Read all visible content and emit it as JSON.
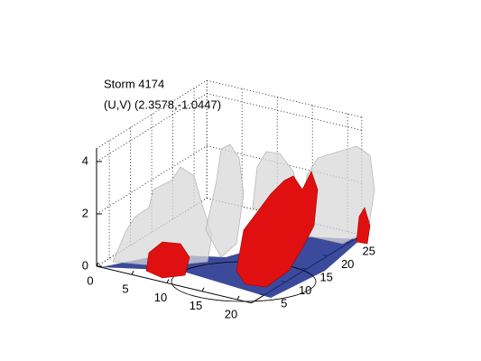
{
  "chart_data": {
    "type": "isosurface3d",
    "title": "Storm 4174",
    "subtitle": "(U,V) (2.3578,-1.0447)",
    "xlim": [
      0,
      22
    ],
    "ylim": [
      2,
      28
    ],
    "zlim": [
      0,
      4.5
    ],
    "xticks": [
      0,
      5,
      10,
      15,
      20
    ],
    "yticks": [
      5,
      10,
      15,
      20,
      25
    ],
    "zticks": [
      0,
      2,
      4
    ],
    "grid": true
  }
}
